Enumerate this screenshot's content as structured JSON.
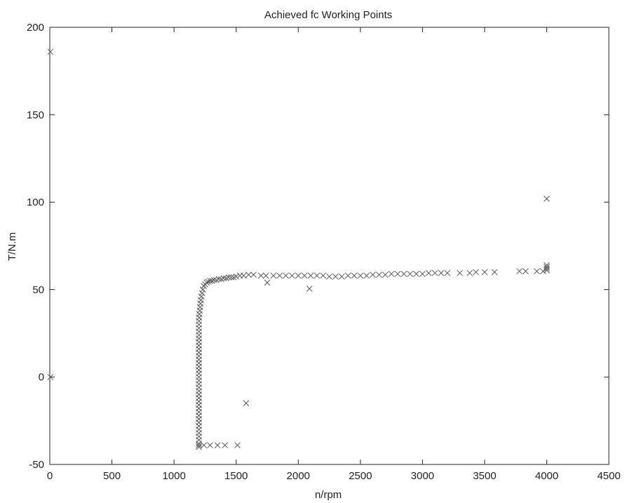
{
  "chart_data": {
    "type": "scatter",
    "title": "Achieved fc Working Points",
    "xlabel": "n/rpm",
    "ylabel": "T/N.m",
    "xlim": [
      0,
      4500
    ],
    "ylim": [
      -50,
      200
    ],
    "xticks": [
      0,
      500,
      1000,
      1500,
      2000,
      2500,
      3000,
      3500,
      4000,
      4500
    ],
    "yticks": [
      -50,
      0,
      50,
      100,
      150,
      200
    ],
    "grid": false,
    "marker": "x",
    "marker_color": "#555555",
    "series": [
      {
        "points": [
          [
            5,
            186
          ],
          [
            5,
            0
          ],
          [
            1200,
            -40
          ],
          [
            1200,
            -38
          ],
          [
            1200,
            -36
          ],
          [
            1200,
            -34
          ],
          [
            1200,
            -32
          ],
          [
            1200,
            -30
          ],
          [
            1200,
            -28
          ],
          [
            1200,
            -26
          ],
          [
            1200,
            -24
          ],
          [
            1200,
            -22
          ],
          [
            1200,
            -20
          ],
          [
            1200,
            -18
          ],
          [
            1200,
            -16
          ],
          [
            1200,
            -14
          ],
          [
            1200,
            -12
          ],
          [
            1200,
            -10
          ],
          [
            1200,
            -8
          ],
          [
            1200,
            -6
          ],
          [
            1200,
            -4
          ],
          [
            1200,
            -2
          ],
          [
            1200,
            0
          ],
          [
            1200,
            2
          ],
          [
            1200,
            4
          ],
          [
            1200,
            6
          ],
          [
            1200,
            8
          ],
          [
            1200,
            10
          ],
          [
            1200,
            12
          ],
          [
            1200,
            14
          ],
          [
            1200,
            16
          ],
          [
            1200,
            18
          ],
          [
            1200,
            20
          ],
          [
            1200,
            22
          ],
          [
            1200,
            24
          ],
          [
            1200,
            26
          ],
          [
            1200,
            28
          ],
          [
            1200,
            30
          ],
          [
            1200,
            32
          ],
          [
            1202,
            34
          ],
          [
            1204,
            36
          ],
          [
            1207,
            38
          ],
          [
            1210,
            40
          ],
          [
            1213,
            42
          ],
          [
            1216,
            44
          ],
          [
            1220,
            46
          ],
          [
            1226,
            48
          ],
          [
            1232,
            50
          ],
          [
            1240,
            52
          ],
          [
            1250,
            53
          ],
          [
            1262,
            54
          ],
          [
            1275,
            54.5
          ],
          [
            1290,
            55
          ],
          [
            1305,
            55
          ],
          [
            1320,
            55.5
          ],
          [
            1340,
            55.5
          ],
          [
            1360,
            56
          ],
          [
            1380,
            56
          ],
          [
            1400,
            56.5
          ],
          [
            1420,
            56.5
          ],
          [
            1440,
            57
          ],
          [
            1460,
            57
          ],
          [
            1480,
            57
          ],
          [
            1500,
            57.5
          ],
          [
            1530,
            58
          ],
          [
            1560,
            58
          ],
          [
            1600,
            58.5
          ],
          [
            1640,
            58.5
          ],
          [
            1700,
            58
          ],
          [
            1740,
            58
          ],
          [
            1800,
            58
          ],
          [
            1850,
            58
          ],
          [
            1900,
            58
          ],
          [
            1950,
            58
          ],
          [
            2000,
            58
          ],
          [
            2050,
            58
          ],
          [
            2100,
            58
          ],
          [
            2150,
            58
          ],
          [
            2200,
            58
          ],
          [
            2250,
            57.5
          ],
          [
            2300,
            57.5
          ],
          [
            2350,
            57.5
          ],
          [
            2400,
            58
          ],
          [
            2450,
            58
          ],
          [
            2500,
            58
          ],
          [
            2550,
            58
          ],
          [
            2600,
            58.5
          ],
          [
            2650,
            58.5
          ],
          [
            2700,
            58.5
          ],
          [
            2750,
            59
          ],
          [
            2800,
            59
          ],
          [
            2850,
            59
          ],
          [
            2900,
            59
          ],
          [
            2950,
            59
          ],
          [
            3000,
            59
          ],
          [
            3050,
            59.5
          ],
          [
            3100,
            59.5
          ],
          [
            3150,
            59.5
          ],
          [
            3200,
            59.5
          ],
          [
            3300,
            59.5
          ],
          [
            3380,
            59.5
          ],
          [
            3430,
            60
          ],
          [
            3500,
            60
          ],
          [
            3580,
            60
          ],
          [
            3780,
            60.5
          ],
          [
            3830,
            60.5
          ],
          [
            3920,
            60.5
          ],
          [
            3970,
            60.5
          ],
          [
            4000,
            61
          ],
          [
            4000,
            62
          ],
          [
            4000,
            63
          ],
          [
            4000,
            64
          ],
          [
            4000,
            102
          ],
          [
            1200,
            -39
          ],
          [
            1240,
            -39
          ],
          [
            1290,
            -39
          ],
          [
            1350,
            -39
          ],
          [
            1410,
            -39
          ],
          [
            1510,
            -39
          ],
          [
            1750,
            54
          ],
          [
            2090,
            50.5
          ],
          [
            1580,
            -15
          ]
        ]
      }
    ]
  }
}
